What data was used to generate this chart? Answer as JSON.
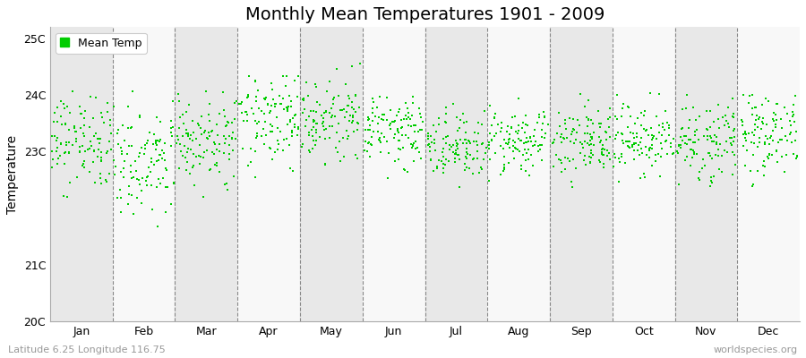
{
  "title": "Monthly Mean Temperatures 1901 - 2009",
  "ylabel": "Temperature",
  "xlabel_months": [
    "Jan",
    "Feb",
    "Mar",
    "Apr",
    "May",
    "Jun",
    "Jul",
    "Aug",
    "Sep",
    "Oct",
    "Nov",
    "Dec"
  ],
  "ylim": [
    20.0,
    25.2
  ],
  "yticks": [
    20,
    21,
    23,
    24,
    25
  ],
  "ytick_labels": [
    "20C",
    "21C",
    "23C",
    "24C",
    "25C"
  ],
  "dot_color": "#00CC00",
  "dot_size": 3,
  "legend_label": "Mean Temp",
  "footer_left": "Latitude 6.25 Longitude 116.75",
  "footer_right": "worldspecies.org",
  "background_color": "#ffffff",
  "plot_bg_color": "#f0f0f0",
  "n_years": 109,
  "monthly_means": [
    23.15,
    22.85,
    23.2,
    23.55,
    23.55,
    23.35,
    23.1,
    23.2,
    23.2,
    23.2,
    23.2,
    23.35
  ],
  "monthly_stds": [
    0.38,
    0.48,
    0.36,
    0.38,
    0.36,
    0.28,
    0.28,
    0.28,
    0.28,
    0.32,
    0.36,
    0.4
  ],
  "seed": 99,
  "title_fontsize": 14,
  "footer_fontsize": 8,
  "tick_fontsize": 9,
  "ylabel_fontsize": 10
}
